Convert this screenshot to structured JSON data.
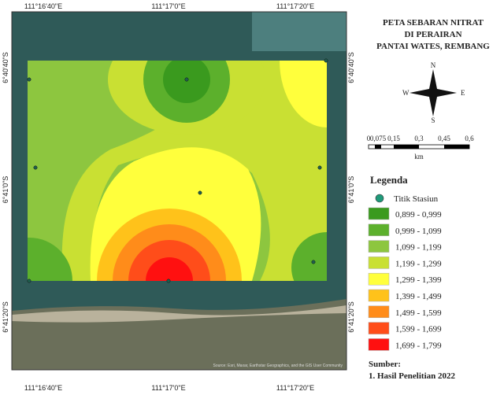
{
  "title": [
    "PETA SEBARAN NITRAT",
    "DI PERAIRAN",
    "PANTAI WATES, REMBANG"
  ],
  "top_coords": [
    "111°16'40\"E",
    "111°17'0\"E",
    "111°17'20\"E"
  ],
  "bottom_coords": [
    "111°16'40\"E",
    "111°17'0\"E",
    "111°17'20\"E"
  ],
  "left_coords": [
    "6°40'40\"S",
    "6°41'0\"S",
    "6°41'20\"S"
  ],
  "right_coords": [
    "6°40'40\"S",
    "6°41'0\"S",
    "6°41'20\"S"
  ],
  "compass": {
    "n": "N",
    "e": "E",
    "s": "S",
    "w": "W"
  },
  "scale": {
    "labels": [
      "0",
      "0,075",
      "0,15",
      "0,3",
      "0,45",
      "0,6"
    ],
    "unit": "km"
  },
  "legend": {
    "title": "Legenda",
    "station": "Titik Stasiun",
    "classes": [
      {
        "label": "0,899 - 0,999",
        "color": "#3a9a1e"
      },
      {
        "label": "0,999 - 1,099",
        "color": "#5cb02c"
      },
      {
        "label": "1,099 - 1,199",
        "color": "#8dc63f"
      },
      {
        "label": "1,199 - 1,299",
        "color": "#c9e033"
      },
      {
        "label": "1,299 - 1,399",
        "color": "#ffff3c"
      },
      {
        "label": "1,399 - 1,499",
        "color": "#ffc21a"
      },
      {
        "label": "1,499 - 1,599",
        "color": "#ff8c1a"
      },
      {
        "label": "1,599 - 1,699",
        "color": "#ff4d1a"
      },
      {
        "label": "1,699 - 1,799",
        "color": "#ff1010"
      }
    ]
  },
  "source": {
    "title": "Sumber:",
    "items": [
      "1. Hasil Penelitian 2022"
    ]
  },
  "attribution": "Source: Esri, Maxar, Earthstar Geographics, and the GIS User Community"
}
